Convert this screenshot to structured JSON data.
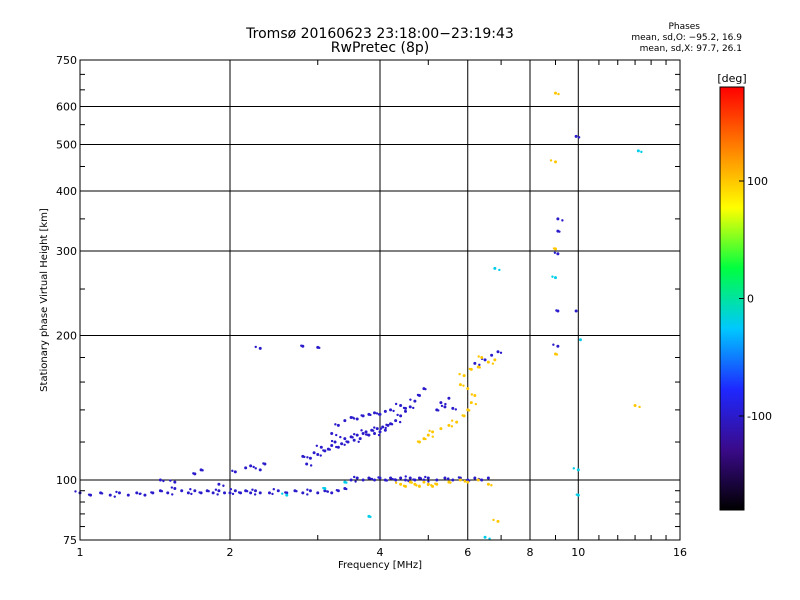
{
  "header": {
    "title_line1": "Tromsø 20160623 23:18:00−23:19:43",
    "title_line2": "RwPretec (8p)",
    "phases_heading": "Phases",
    "phases_o": "mean, sd,O: −95.2, 16.9",
    "phases_x": "mean, sd,X:  97.7, 26.1"
  },
  "chart_data": {
    "type": "scatter",
    "title": "Tromsø 20160623 23:18:00−23:19:43",
    "subtitle": "RwPretec (8p)",
    "xlabel": "Frequency [MHz]",
    "ylabel": "Stationary phase Virtual Height [km]",
    "x_scale": "log",
    "y_scale": "log",
    "xlim": [
      1,
      16
    ],
    "ylim": [
      75,
      750
    ],
    "x_ticks": [
      1,
      2,
      4,
      6,
      8,
      10,
      16
    ],
    "x_tick_labels": [
      "1",
      "2",
      "4",
      "6",
      "8",
      "10",
      "16"
    ],
    "y_ticks": [
      75,
      100,
      200,
      300,
      400,
      500,
      600,
      750
    ],
    "y_tick_labels": [
      "75",
      "100",
      "200",
      "300",
      "400",
      "500",
      "600",
      "750"
    ],
    "grid": true,
    "colorbar": {
      "label": "[deg]",
      "range": [
        -180,
        180
      ],
      "ticks": [
        100,
        0,
        -100
      ],
      "tick_labels": [
        "100",
        "0",
        "-100"
      ],
      "colors": [
        "#000000",
        "#3a0a8a",
        "#1e28ff",
        "#00c8ff",
        "#00ff40",
        "#ffff00",
        "#ff8000",
        "#ff0000"
      ]
    },
    "series": [
      {
        "name": "O",
        "color_phase": -100,
        "points": [
          [
            1.0,
            94
          ],
          [
            1.05,
            93
          ],
          [
            1.1,
            94
          ],
          [
            1.15,
            93
          ],
          [
            1.2,
            94
          ],
          [
            1.25,
            93
          ],
          [
            1.3,
            94
          ],
          [
            1.35,
            93
          ],
          [
            1.4,
            94
          ],
          [
            1.45,
            95
          ],
          [
            1.5,
            94
          ],
          [
            1.55,
            96
          ],
          [
            1.6,
            95
          ],
          [
            1.65,
            94
          ],
          [
            1.7,
            95
          ],
          [
            1.75,
            94
          ],
          [
            1.8,
            95
          ],
          [
            1.85,
            94
          ],
          [
            1.9,
            95
          ],
          [
            1.95,
            94
          ],
          [
            2.0,
            94
          ],
          [
            2.05,
            95
          ],
          [
            2.1,
            94
          ],
          [
            2.15,
            95
          ],
          [
            2.2,
            94
          ],
          [
            2.25,
            95
          ],
          [
            2.3,
            94
          ],
          [
            2.4,
            94
          ],
          [
            2.5,
            95
          ],
          [
            2.6,
            94
          ],
          [
            2.7,
            95
          ],
          [
            2.8,
            94
          ],
          [
            2.9,
            95
          ],
          [
            3.0,
            94
          ],
          [
            3.1,
            95
          ],
          [
            3.2,
            94
          ],
          [
            3.3,
            95
          ],
          [
            3.4,
            96
          ],
          [
            3.5,
            100
          ],
          [
            3.6,
            101
          ],
          [
            3.7,
            100
          ],
          [
            3.8,
            101
          ],
          [
            3.9,
            100
          ],
          [
            4.0,
            101
          ],
          [
            4.1,
            100
          ],
          [
            4.2,
            101
          ],
          [
            4.3,
            100
          ],
          [
            4.4,
            101
          ],
          [
            4.5,
            100
          ],
          [
            4.6,
            101
          ],
          [
            4.7,
            100
          ],
          [
            4.8,
            101
          ],
          [
            4.9,
            100
          ],
          [
            5.0,
            101
          ],
          [
            5.2,
            100
          ],
          [
            5.4,
            101
          ],
          [
            5.6,
            100
          ],
          [
            5.8,
            101
          ],
          [
            6.0,
            100
          ],
          [
            6.2,
            101
          ],
          [
            6.4,
            100
          ],
          [
            6.6,
            101
          ],
          [
            1.45,
            100
          ],
          [
            1.55,
            99
          ],
          [
            1.7,
            103
          ],
          [
            1.75,
            105
          ],
          [
            1.9,
            98
          ],
          [
            2.05,
            104
          ],
          [
            2.15,
            106
          ],
          [
            2.2,
            107
          ],
          [
            2.3,
            105
          ],
          [
            2.35,
            108
          ],
          [
            2.8,
            112
          ],
          [
            2.85,
            108
          ],
          [
            2.9,
            111
          ],
          [
            2.95,
            114
          ],
          [
            3.0,
            113
          ],
          [
            3.05,
            117
          ],
          [
            3.1,
            115
          ],
          [
            3.15,
            116
          ],
          [
            3.2,
            118
          ],
          [
            3.25,
            120
          ],
          [
            3.3,
            117
          ],
          [
            3.35,
            119
          ],
          [
            3.4,
            122
          ],
          [
            3.45,
            120
          ],
          [
            3.5,
            123
          ],
          [
            3.55,
            121
          ],
          [
            3.6,
            124
          ],
          [
            3.65,
            122
          ],
          [
            3.7,
            125
          ],
          [
            3.75,
            126
          ],
          [
            3.8,
            124
          ],
          [
            3.85,
            127
          ],
          [
            3.9,
            125
          ],
          [
            3.95,
            128
          ],
          [
            4.0,
            126
          ],
          [
            4.05,
            129
          ],
          [
            4.1,
            127
          ],
          [
            4.15,
            130
          ],
          [
            4.2,
            131
          ],
          [
            4.3,
            133
          ],
          [
            4.4,
            136
          ],
          [
            4.5,
            139
          ],
          [
            4.6,
            142
          ],
          [
            4.7,
            146
          ],
          [
            4.8,
            150
          ],
          [
            4.9,
            155
          ],
          [
            3.2,
            125
          ],
          [
            3.3,
            130
          ],
          [
            3.4,
            133
          ],
          [
            3.5,
            135
          ],
          [
            3.6,
            134
          ],
          [
            3.7,
            136
          ],
          [
            3.8,
            137
          ],
          [
            3.9,
            138
          ],
          [
            4.0,
            137
          ],
          [
            4.1,
            139
          ],
          [
            4.2,
            140
          ],
          [
            4.4,
            143
          ],
          [
            4.5,
            141
          ],
          [
            5.2,
            140
          ],
          [
            5.3,
            145
          ],
          [
            5.4,
            142
          ],
          [
            5.5,
            148
          ],
          [
            5.6,
            141
          ],
          [
            2.3,
            188
          ],
          [
            2.8,
            190
          ],
          [
            3.0,
            189
          ],
          [
            6.2,
            175
          ],
          [
            6.5,
            178
          ],
          [
            6.7,
            182
          ],
          [
            6.9,
            185
          ],
          [
            9.1,
            190
          ],
          [
            9.1,
            225
          ],
          [
            9.1,
            330
          ],
          [
            9.1,
            350
          ],
          [
            9.1,
            296
          ],
          [
            9.9,
            225
          ],
          [
            9.9,
            520
          ]
        ]
      },
      {
        "name": "X",
        "color_phase": 100,
        "points": [
          [
            4.4,
            98
          ],
          [
            4.5,
            97
          ],
          [
            4.6,
            99
          ],
          [
            4.7,
            98
          ],
          [
            4.8,
            97
          ],
          [
            4.9,
            99
          ],
          [
            5.0,
            98
          ],
          [
            5.1,
            97
          ],
          [
            5.2,
            98
          ],
          [
            5.5,
            99
          ],
          [
            5.8,
            100
          ],
          [
            6.0,
            99
          ],
          [
            6.3,
            100
          ],
          [
            6.6,
            98
          ],
          [
            6.9,
            82
          ],
          [
            4.8,
            120
          ],
          [
            4.9,
            122
          ],
          [
            5.0,
            124
          ],
          [
            5.1,
            126
          ],
          [
            5.3,
            128
          ],
          [
            5.5,
            130
          ],
          [
            5.7,
            132
          ],
          [
            5.9,
            136
          ],
          [
            6.0,
            140
          ],
          [
            6.1,
            145
          ],
          [
            6.2,
            150
          ],
          [
            6.0,
            155
          ],
          [
            5.8,
            158
          ],
          [
            5.9,
            165
          ],
          [
            6.1,
            170
          ],
          [
            6.3,
            172
          ],
          [
            6.6,
            176
          ],
          [
            6.4,
            180
          ],
          [
            6.8,
            178
          ],
          [
            9.0,
            640
          ],
          [
            9.0,
            460
          ],
          [
            9.0,
            303
          ],
          [
            9.0,
            183
          ],
          [
            13.0,
            143
          ]
        ]
      },
      {
        "name": "other",
        "color_phase": -20,
        "points": [
          [
            2.6,
            93
          ],
          [
            3.1,
            96
          ],
          [
            3.4,
            99
          ],
          [
            6.8,
            276
          ],
          [
            9.0,
            264
          ],
          [
            10.1,
            196
          ],
          [
            13.2,
            485
          ],
          [
            10.0,
            105
          ],
          [
            10.0,
            93
          ],
          [
            3.8,
            84
          ],
          [
            6.5,
            76
          ]
        ]
      }
    ]
  }
}
